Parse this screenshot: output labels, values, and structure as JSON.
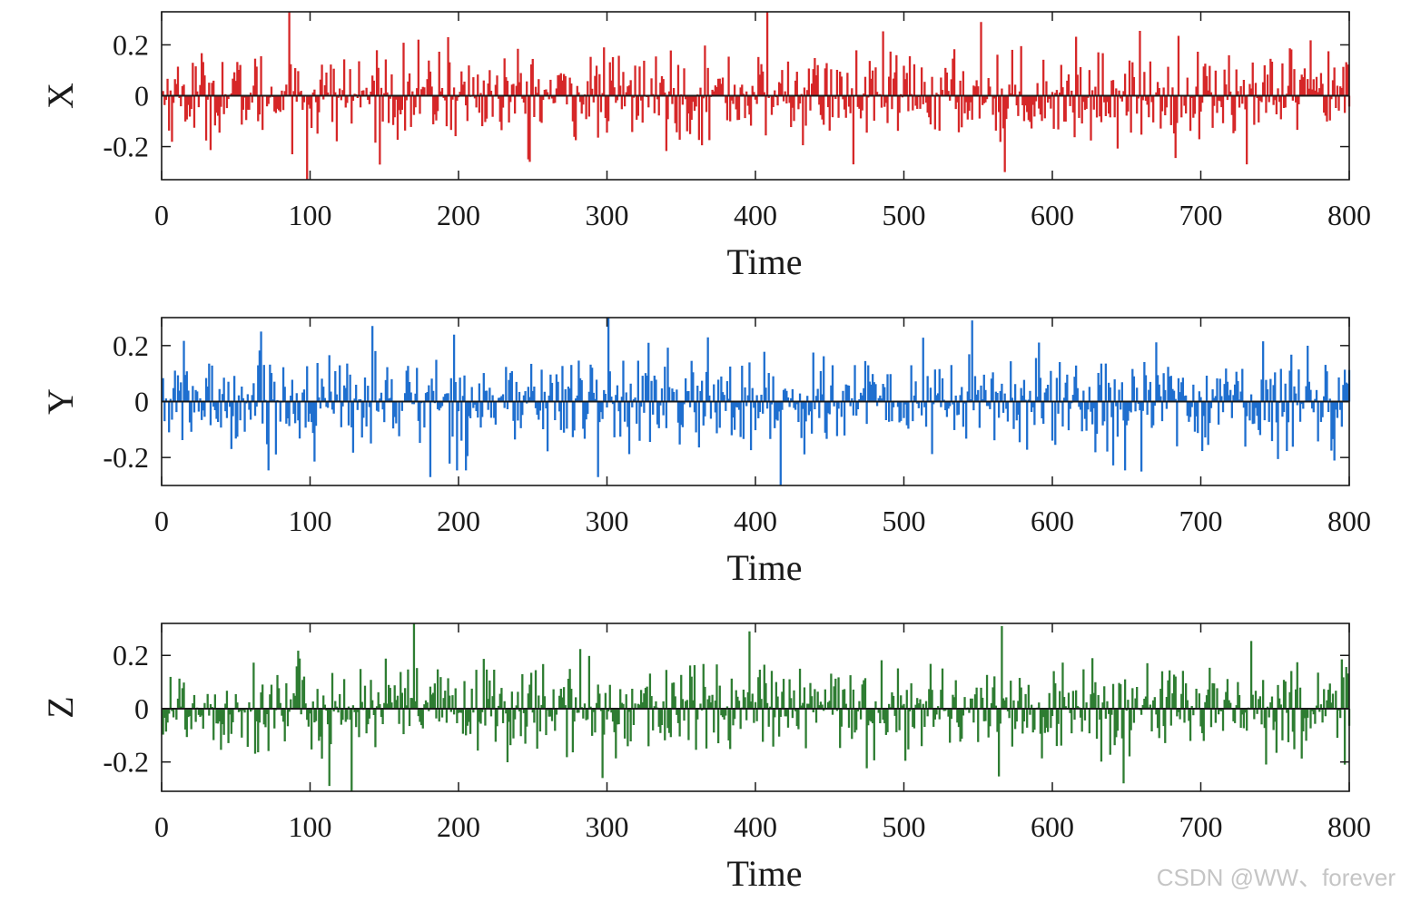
{
  "chart_data": [
    {
      "type": "bar",
      "panel_id": "x",
      "series": [
        {
          "name": "X",
          "color": "#d62728"
        }
      ],
      "ylabel": "X",
      "xlabel": "Time",
      "xlim": [
        0,
        800
      ],
      "ylim": [
        -0.33,
        0.33
      ],
      "xticks": [
        "0",
        "100",
        "200",
        "300",
        "400",
        "500",
        "600",
        "700",
        "800"
      ],
      "yticks": [
        "0.2",
        "0",
        "-0.2"
      ],
      "n_points": 800,
      "spikes": [
        {
          "x": 86,
          "y": 0.33
        },
        {
          "x": 98,
          "y": -0.33
        },
        {
          "x": 193,
          "y": 0.23
        },
        {
          "x": 247,
          "y": -0.25
        },
        {
          "x": 408,
          "y": 0.33
        },
        {
          "x": 466,
          "y": -0.27
        },
        {
          "x": 552,
          "y": 0.29
        },
        {
          "x": 568,
          "y": -0.3
        },
        {
          "x": 731,
          "y": -0.27
        }
      ]
    },
    {
      "type": "bar",
      "panel_id": "y",
      "series": [
        {
          "name": "Y",
          "color": "#1f6fcf"
        }
      ],
      "ylabel": "Y",
      "xlabel": "Time",
      "xlim": [
        0,
        800
      ],
      "ylim": [
        -0.3,
        0.3
      ],
      "xticks": [
        "0",
        "100",
        "200",
        "300",
        "400",
        "500",
        "600",
        "700",
        "800"
      ],
      "yticks": [
        "0.2",
        "0",
        "-0.2"
      ],
      "n_points": 800,
      "spikes": [
        {
          "x": 67,
          "y": 0.25
        },
        {
          "x": 142,
          "y": 0.27
        },
        {
          "x": 181,
          "y": -0.27
        },
        {
          "x": 294,
          "y": -0.27
        },
        {
          "x": 301,
          "y": 0.3
        },
        {
          "x": 417,
          "y": -0.3
        },
        {
          "x": 546,
          "y": 0.29
        },
        {
          "x": 660,
          "y": -0.25
        }
      ]
    },
    {
      "type": "bar",
      "panel_id": "z",
      "series": [
        {
          "name": "Z",
          "color": "#2e7d32"
        }
      ],
      "ylabel": "Z",
      "xlabel": "Time",
      "xlim": [
        0,
        800
      ],
      "ylim": [
        -0.31,
        0.32
      ],
      "xticks": [
        "0",
        "100",
        "200",
        "300",
        "400",
        "500",
        "600",
        "700",
        "800"
      ],
      "yticks": [
        "0.2",
        "0",
        "-0.2"
      ],
      "n_points": 800,
      "spikes": [
        {
          "x": 113,
          "y": -0.29
        },
        {
          "x": 128,
          "y": -0.31
        },
        {
          "x": 170,
          "y": 0.32
        },
        {
          "x": 297,
          "y": -0.26
        },
        {
          "x": 396,
          "y": 0.29
        },
        {
          "x": 566,
          "y": 0.31
        },
        {
          "x": 648,
          "y": -0.28
        },
        {
          "x": 797,
          "y": -0.21
        }
      ]
    }
  ],
  "watermark": "CSDN @WW、forever"
}
